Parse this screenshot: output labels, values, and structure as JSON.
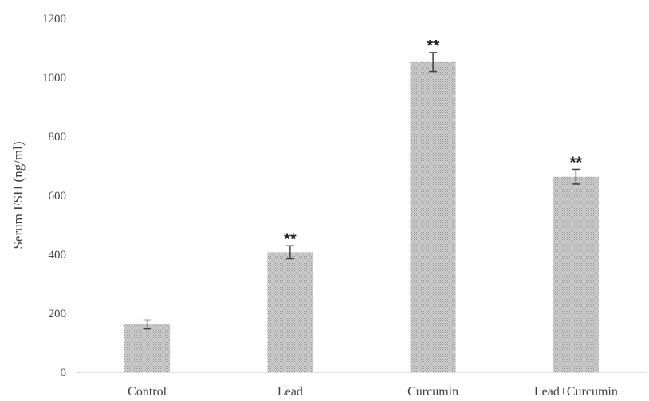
{
  "chart_data": {
    "type": "bar",
    "title": "",
    "xlabel": "",
    "ylabel": "Serum FSH (ng/ml)",
    "categories": [
      "Control",
      "Lead",
      "Curcumin",
      "Lead+Curcumin"
    ],
    "values": [
      162,
      407,
      1052,
      663
    ],
    "errors": [
      15,
      22,
      32,
      25
    ],
    "annotations": [
      "",
      "**",
      "**",
      "**"
    ],
    "ylim": [
      0,
      1200
    ],
    "yticks": [
      0,
      200,
      400,
      600,
      800,
      1000,
      1200
    ],
    "grid": false,
    "legend": "none",
    "colors": {
      "bar_fill": "#c8c8c8",
      "bar_pattern": "#9a9a9a",
      "axis": "#bfbfbf",
      "error_bar": "#404040",
      "text": "#404040"
    }
  }
}
